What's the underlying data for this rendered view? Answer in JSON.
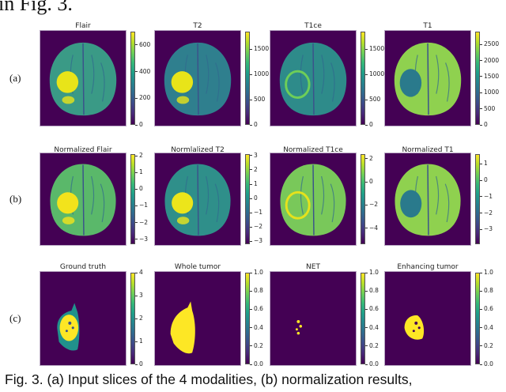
{
  "intro_text": "in Fig. 3.",
  "rows": [
    {
      "label": "(a)",
      "panels": [
        {
          "title": "Flair",
          "kind": "brain",
          "brain": "#3a9a86",
          "tumor": "#e8e419",
          "cbar": {
            "min": 0,
            "max": 700,
            "ticks": [
              "0",
              "200",
              "400",
              "600"
            ],
            "values": [
              0,
              200,
              400,
              600
            ]
          }
        },
        {
          "title": "T2",
          "kind": "brain",
          "brain": "#2f7f8e",
          "tumor": "#e8e419",
          "cbar": {
            "min": 0,
            "max": 1850,
            "ticks": [
              "0",
              "500",
              "1000",
              "1500"
            ],
            "values": [
              0,
              500,
              1000,
              1500
            ]
          }
        },
        {
          "title": "T1ce",
          "kind": "ring",
          "brain": "#2e8b8a",
          "tumor": "#6ece58",
          "cbar": {
            "min": 0,
            "max": 1850,
            "ticks": [
              "0",
              "500",
              "1000",
              "1500"
            ],
            "values": [
              0,
              500,
              1000,
              1500
            ]
          }
        },
        {
          "title": "T1",
          "kind": "dark",
          "brain": "#8fd14f",
          "tumor": "#2a7a8c",
          "cbar": {
            "min": 0,
            "max": 2900,
            "ticks": [
              "0",
              "500",
              "1000",
              "1500",
              "2000",
              "2500"
            ],
            "values": [
              0,
              500,
              1000,
              1500,
              2000,
              2500
            ]
          }
        }
      ]
    },
    {
      "label": "(b)",
      "panels": [
        {
          "title": "Normalized Flair",
          "kind": "brain",
          "brain": "#5ab86a",
          "tumor": "#f2e31c",
          "cbar": {
            "min": -3.3,
            "max": 2.1,
            "ticks": [
              "−3",
              "−2",
              "−1",
              "0",
              "1",
              "2"
            ],
            "values": [
              -3,
              -2,
              -1,
              0,
              1,
              2
            ]
          }
        },
        {
          "title": "Normlalized T2",
          "kind": "brain",
          "brain": "#2f8f8a",
          "tumor": "#ece51b",
          "cbar": {
            "min": -3.2,
            "max": 3.1,
            "ticks": [
              "−3",
              "−2",
              "−1",
              "0",
              "1",
              "2",
              "3"
            ],
            "values": [
              -3,
              -2,
              -1,
              0,
              1,
              2,
              3
            ]
          }
        },
        {
          "title": "Normalized T1ce",
          "kind": "ring",
          "brain": "#79c85a",
          "tumor": "#e6e21c",
          "cbar": {
            "min": -5.4,
            "max": 2.4,
            "ticks": [
              "−4",
              "−2",
              "0",
              "2"
            ],
            "values": [
              -4,
              -2,
              0,
              2
            ]
          }
        },
        {
          "title": "Normalized T1",
          "kind": "dark",
          "brain": "#8fd14f",
          "tumor": "#2a7a8c",
          "cbar": {
            "min": -3.9,
            "max": 1.6,
            "ticks": [
              "−3",
              "−2",
              "−1",
              "0",
              "1"
            ],
            "values": [
              -3,
              -2,
              -1,
              0,
              1
            ]
          }
        }
      ]
    },
    {
      "label": "(c)",
      "panels": [
        {
          "title": "Ground truth",
          "kind": "gt",
          "brain": "#21918c",
          "tumor": "#fde725",
          "cbar": {
            "min": 0,
            "max": 4,
            "ticks": [
              "0",
              "1",
              "2",
              "3",
              "4"
            ],
            "values": [
              0,
              1,
              2,
              3,
              4
            ]
          }
        },
        {
          "title": "Whole tumor",
          "kind": "whole",
          "brain": "#fde725",
          "tumor": "#fde725",
          "cbar": {
            "min": 0,
            "max": 1,
            "ticks": [
              "0.0",
              "0.2",
              "0.4",
              "0.6",
              "0.8",
              "1.0"
            ],
            "values": [
              0,
              0.2,
              0.4,
              0.6,
              0.8,
              1
            ]
          }
        },
        {
          "title": "NET",
          "kind": "net",
          "brain": "#fde725",
          "tumor": "#fde725",
          "cbar": {
            "min": 0,
            "max": 1,
            "ticks": [
              "0.0",
              "0.2",
              "0.4",
              "0.6",
              "0.8",
              "1.0"
            ],
            "values": [
              0,
              0.2,
              0.4,
              0.6,
              0.8,
              1
            ]
          }
        },
        {
          "title": "Enhancing tumor",
          "kind": "enh",
          "brain": "#fde725",
          "tumor": "#fde725",
          "cbar": {
            "min": 0,
            "max": 1,
            "ticks": [
              "0.0",
              "0.2",
              "0.4",
              "0.6",
              "0.8",
              "1.0"
            ],
            "values": [
              0,
              0.2,
              0.4,
              0.6,
              0.8,
              1
            ]
          }
        }
      ]
    }
  ],
  "caption": "Fig. 3. (a) Input slices of the 4 modalities, (b) normalization results,"
}
